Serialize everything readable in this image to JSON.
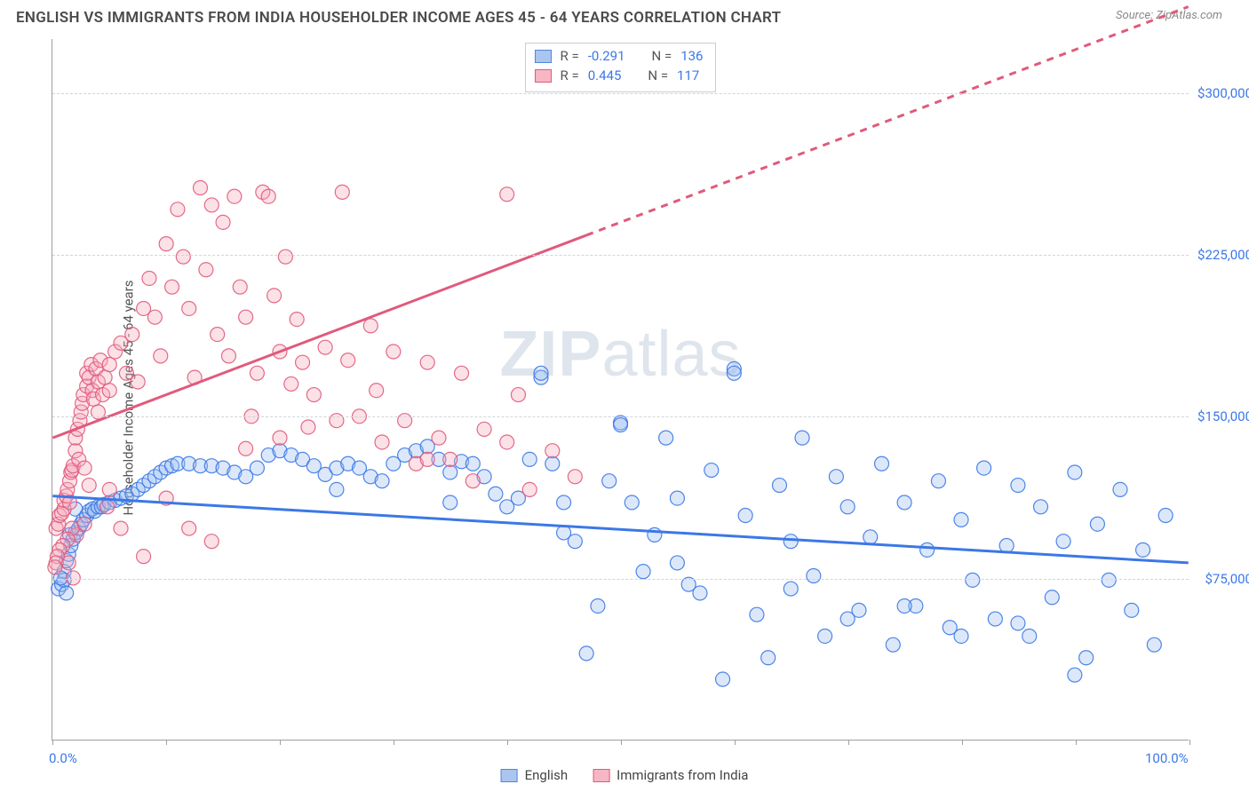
{
  "header": {
    "title": "ENGLISH VS IMMIGRANTS FROM INDIA HOUSEHOLDER INCOME AGES 45 - 64 YEARS CORRELATION CHART",
    "source": "Source: ZipAtlas.com"
  },
  "chart": {
    "type": "scatter",
    "ylabel": "Householder Income Ages 45 - 64 years",
    "watermark_bold": "ZIP",
    "watermark_rest": "atlas",
    "background_color": "#ffffff",
    "grid_color": "#d0d4d9",
    "axis_color": "#9aa0a6",
    "xlim": [
      0,
      100
    ],
    "ylim": [
      0,
      325000
    ],
    "x_ticks": [
      0,
      10,
      20,
      30,
      40,
      50,
      60,
      70,
      80,
      90,
      100
    ],
    "x_tick_labels": {
      "0": "0.0%",
      "100": "100.0%"
    },
    "y_gridlines": [
      75000,
      150000,
      225000,
      300000
    ],
    "y_tick_labels": [
      "$75,000",
      "$150,000",
      "$225,000",
      "$300,000"
    ],
    "marker_radius": 8,
    "marker_fill_opacity": 0.35,
    "marker_stroke_opacity": 0.9,
    "marker_stroke_width": 1.2,
    "trend_line_width": 3,
    "legend_top": [
      {
        "swatch_fill": "#aac6ef",
        "swatch_border": "#4f86d9",
        "R_label": "R =",
        "R": "-0.291",
        "N_label": "N =",
        "N": "136",
        "value_color": "#3b78e7"
      },
      {
        "swatch_fill": "#f7b6c4",
        "swatch_border": "#e05a7b",
        "R_label": "R =",
        "R": "0.445",
        "N_label": "N =",
        "N": "117",
        "value_color": "#3b78e7"
      }
    ],
    "legend_bottom": [
      {
        "swatch_fill": "#aac6ef",
        "swatch_border": "#4f86d9",
        "label": "English"
      },
      {
        "swatch_fill": "#f7b6c4",
        "swatch_border": "#e05a7b",
        "label": "Immigrants from India"
      }
    ],
    "series": [
      {
        "name": "English",
        "color": "#3b78e7",
        "fill": "#9cbdf0",
        "trend": {
          "x1": 0,
          "y1": 113000,
          "x2": 100,
          "y2": 82000,
          "dash": ""
        },
        "points": [
          [
            0.5,
            70000
          ],
          [
            0.8,
            72000
          ],
          [
            1,
            78000
          ],
          [
            1.2,
            83000
          ],
          [
            1.4,
            86000
          ],
          [
            1.5,
            95000
          ],
          [
            1.6,
            90000
          ],
          [
            1.8,
            93000
          ],
          [
            2,
            96000
          ],
          [
            2,
            107000
          ],
          [
            2.3,
            98000
          ],
          [
            2.5,
            100000
          ],
          [
            2.7,
            102000
          ],
          [
            3,
            104000
          ],
          [
            3.2,
            106000
          ],
          [
            3.5,
            107000
          ],
          [
            3.7,
            106000
          ],
          [
            4,
            108000
          ],
          [
            4.3,
            108000
          ],
          [
            4.5,
            109000
          ],
          [
            5,
            110000
          ],
          [
            5.5,
            111000
          ],
          [
            6,
            112000
          ],
          [
            6.5,
            113000
          ],
          [
            7,
            114000
          ],
          [
            7.5,
            116000
          ],
          [
            8,
            118000
          ],
          [
            8.5,
            120000
          ],
          [
            9,
            122000
          ],
          [
            9.5,
            124000
          ],
          [
            10,
            126000
          ],
          [
            10.5,
            127000
          ],
          [
            11,
            128000
          ],
          [
            12,
            128000
          ],
          [
            13,
            127000
          ],
          [
            14,
            127000
          ],
          [
            15,
            126000
          ],
          [
            16,
            124000
          ],
          [
            17,
            122000
          ],
          [
            18,
            126000
          ],
          [
            19,
            132000
          ],
          [
            20,
            134000
          ],
          [
            21,
            132000
          ],
          [
            22,
            130000
          ],
          [
            23,
            127000
          ],
          [
            24,
            123000
          ],
          [
            25,
            126000
          ],
          [
            26,
            128000
          ],
          [
            27,
            126000
          ],
          [
            28,
            122000
          ],
          [
            29,
            120000
          ],
          [
            30,
            128000
          ],
          [
            31,
            132000
          ],
          [
            32,
            134000
          ],
          [
            33,
            136000
          ],
          [
            34,
            130000
          ],
          [
            35,
            124000
          ],
          [
            36,
            129000
          ],
          [
            37,
            128000
          ],
          [
            38,
            122000
          ],
          [
            39,
            114000
          ],
          [
            40,
            108000
          ],
          [
            41,
            112000
          ],
          [
            42,
            130000
          ],
          [
            43,
            168000
          ],
          [
            44,
            128000
          ],
          [
            45,
            110000
          ],
          [
            46,
            92000
          ],
          [
            47,
            40000
          ],
          [
            48,
            62000
          ],
          [
            49,
            120000
          ],
          [
            50,
            147000
          ],
          [
            51,
            110000
          ],
          [
            52,
            78000
          ],
          [
            53,
            95000
          ],
          [
            54,
            140000
          ],
          [
            55,
            112000
          ],
          [
            56,
            72000
          ],
          [
            57,
            68000
          ],
          [
            58,
            125000
          ],
          [
            59,
            28000
          ],
          [
            60,
            172000
          ],
          [
            61,
            104000
          ],
          [
            62,
            58000
          ],
          [
            63,
            38000
          ],
          [
            64,
            118000
          ],
          [
            65,
            92000
          ],
          [
            66,
            140000
          ],
          [
            67,
            76000
          ],
          [
            68,
            48000
          ],
          [
            69,
            122000
          ],
          [
            70,
            108000
          ],
          [
            71,
            60000
          ],
          [
            72,
            94000
          ],
          [
            73,
            128000
          ],
          [
            74,
            44000
          ],
          [
            75,
            110000
          ],
          [
            76,
            62000
          ],
          [
            77,
            88000
          ],
          [
            78,
            120000
          ],
          [
            79,
            52000
          ],
          [
            80,
            102000
          ],
          [
            81,
            74000
          ],
          [
            82,
            126000
          ],
          [
            83,
            56000
          ],
          [
            84,
            90000
          ],
          [
            85,
            118000
          ],
          [
            86,
            48000
          ],
          [
            87,
            108000
          ],
          [
            88,
            66000
          ],
          [
            89,
            92000
          ],
          [
            90,
            124000
          ],
          [
            91,
            38000
          ],
          [
            92,
            100000
          ],
          [
            93,
            74000
          ],
          [
            94,
            116000
          ],
          [
            95,
            60000
          ],
          [
            96,
            88000
          ],
          [
            97,
            44000
          ],
          [
            98,
            104000
          ],
          [
            1,
            74000
          ],
          [
            1.2,
            68000
          ],
          [
            0.7,
            75000
          ],
          [
            43,
            170000
          ],
          [
            50,
            146000
          ],
          [
            60,
            170000
          ],
          [
            25,
            116000
          ],
          [
            35,
            110000
          ],
          [
            45,
            96000
          ],
          [
            55,
            82000
          ],
          [
            65,
            70000
          ],
          [
            70,
            56000
          ],
          [
            75,
            62000
          ],
          [
            80,
            48000
          ],
          [
            85,
            54000
          ],
          [
            90,
            30000
          ]
        ]
      },
      {
        "name": "Immigrants from India",
        "color": "#e05a7b",
        "fill": "#f6a8bb",
        "trend": {
          "x1": 0,
          "y1": 140000,
          "x2": 100,
          "y2": 340000,
          "dash": "",
          "dash_after_x": 47,
          "dash_pattern": "8 7"
        },
        "points": [
          [
            0.3,
            98000
          ],
          [
            0.5,
            100000
          ],
          [
            0.6,
            104000
          ],
          [
            0.8,
            105000
          ],
          [
            1,
            107000
          ],
          [
            1,
            111000
          ],
          [
            1.2,
            113000
          ],
          [
            1.3,
            116000
          ],
          [
            1.4,
            82000
          ],
          [
            1.5,
            120000
          ],
          [
            1.5,
            110000
          ],
          [
            1.6,
            124000
          ],
          [
            1.7,
            125000
          ],
          [
            1.8,
            127000
          ],
          [
            1.8,
            75000
          ],
          [
            2,
            134000
          ],
          [
            2,
            140000
          ],
          [
            2.2,
            144000
          ],
          [
            2.3,
            130000
          ],
          [
            2.4,
            148000
          ],
          [
            2.5,
            152000
          ],
          [
            2.6,
            156000
          ],
          [
            2.7,
            160000
          ],
          [
            2.8,
            126000
          ],
          [
            3,
            164000
          ],
          [
            3,
            170000
          ],
          [
            3.2,
            168000
          ],
          [
            3.4,
            174000
          ],
          [
            3.5,
            162000
          ],
          [
            3.6,
            158000
          ],
          [
            3.8,
            172000
          ],
          [
            4,
            166000
          ],
          [
            4,
            152000
          ],
          [
            4.2,
            176000
          ],
          [
            4.4,
            160000
          ],
          [
            4.6,
            168000
          ],
          [
            5,
            174000
          ],
          [
            5,
            162000
          ],
          [
            5.5,
            180000
          ],
          [
            6,
            184000
          ],
          [
            6.5,
            170000
          ],
          [
            7,
            188000
          ],
          [
            7.5,
            166000
          ],
          [
            8,
            200000
          ],
          [
            8.5,
            214000
          ],
          [
            9,
            196000
          ],
          [
            9.5,
            178000
          ],
          [
            10,
            230000
          ],
          [
            10.5,
            210000
          ],
          [
            11,
            246000
          ],
          [
            11.5,
            224000
          ],
          [
            12,
            200000
          ],
          [
            12.5,
            168000
          ],
          [
            13,
            256000
          ],
          [
            13.5,
            218000
          ],
          [
            14,
            248000
          ],
          [
            14.5,
            188000
          ],
          [
            15,
            240000
          ],
          [
            15.5,
            178000
          ],
          [
            16,
            252000
          ],
          [
            16.5,
            210000
          ],
          [
            17,
            196000
          ],
          [
            17.5,
            150000
          ],
          [
            18,
            170000
          ],
          [
            18.5,
            254000
          ],
          [
            19,
            252000
          ],
          [
            19.5,
            206000
          ],
          [
            20,
            180000
          ],
          [
            20.5,
            224000
          ],
          [
            21,
            165000
          ],
          [
            21.5,
            195000
          ],
          [
            22,
            175000
          ],
          [
            22.5,
            145000
          ],
          [
            23,
            160000
          ],
          [
            24,
            182000
          ],
          [
            25,
            148000
          ],
          [
            25.5,
            254000
          ],
          [
            26,
            176000
          ],
          [
            27,
            150000
          ],
          [
            28,
            192000
          ],
          [
            28.5,
            162000
          ],
          [
            29,
            138000
          ],
          [
            30,
            180000
          ],
          [
            31,
            148000
          ],
          [
            32,
            128000
          ],
          [
            33,
            175000
          ],
          [
            34,
            140000
          ],
          [
            35,
            130000
          ],
          [
            36,
            170000
          ],
          [
            37,
            120000
          ],
          [
            38,
            144000
          ],
          [
            40,
            253000
          ],
          [
            40,
            138000
          ],
          [
            41,
            160000
          ],
          [
            42,
            116000
          ],
          [
            44,
            134000
          ],
          [
            46,
            122000
          ],
          [
            33,
            130000
          ],
          [
            20,
            140000
          ],
          [
            17,
            135000
          ],
          [
            14,
            92000
          ],
          [
            12,
            98000
          ],
          [
            10,
            112000
          ],
          [
            8,
            85000
          ],
          [
            6,
            98000
          ],
          [
            5,
            116000
          ],
          [
            4.8,
            108000
          ],
          [
            3.2,
            118000
          ],
          [
            2.8,
            100000
          ],
          [
            2.1,
            95000
          ],
          [
            1.7,
            98000
          ],
          [
            1.3,
            93000
          ],
          [
            0.9,
            90000
          ],
          [
            0.6,
            88000
          ],
          [
            0.4,
            85000
          ],
          [
            0.3,
            82000
          ],
          [
            0.2,
            80000
          ]
        ]
      }
    ]
  }
}
